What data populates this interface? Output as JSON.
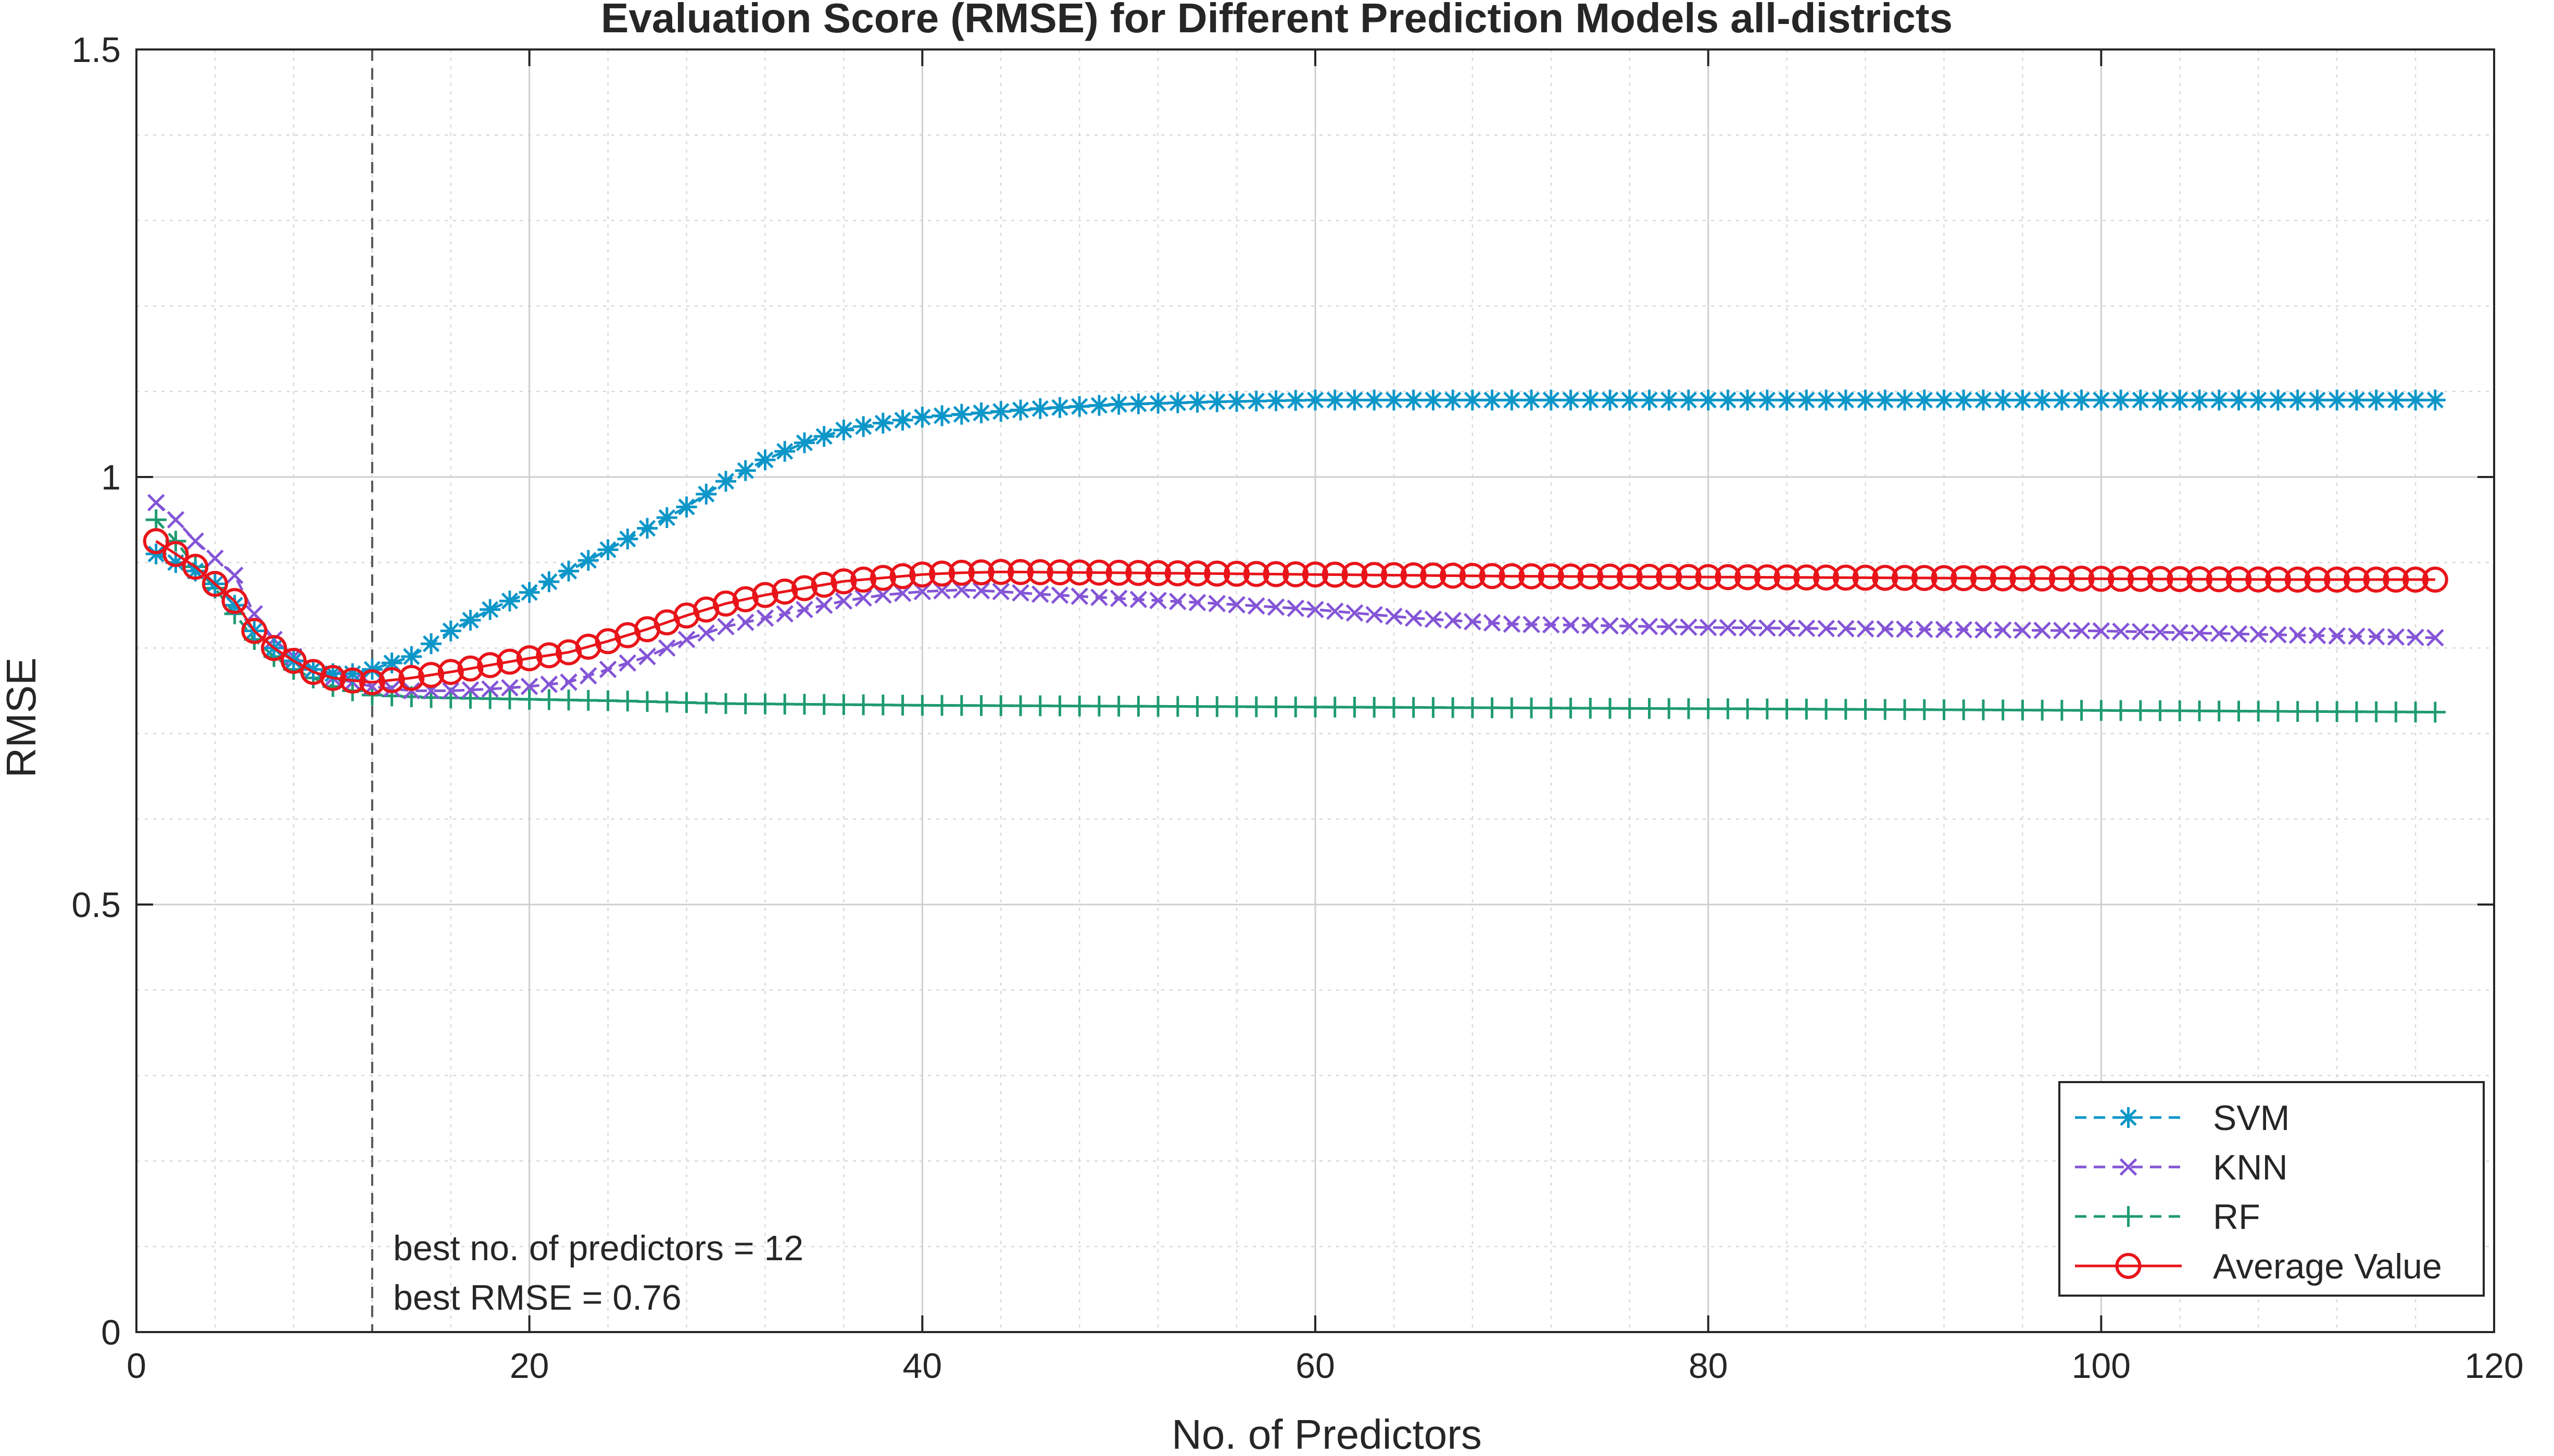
{
  "chart_data": {
    "type": "line",
    "title": "Evaluation Score (RMSE) for Different Prediction Models all-districts",
    "xlabel": "No. of Predictors",
    "ylabel": "RMSE",
    "xlim": [
      0,
      120
    ],
    "ylim": [
      0,
      1.5
    ],
    "xticks": [
      0,
      20,
      40,
      60,
      80,
      100,
      120
    ],
    "xtick_labels": [
      "0",
      "20",
      "40",
      "60",
      "80",
      "100",
      "120"
    ],
    "yticks": [
      0,
      0.5,
      1,
      1.5
    ],
    "ytick_labels": [
      "0",
      "0.5",
      "1",
      "1.5"
    ],
    "grid": true,
    "minor_grid": true,
    "legend_position": "bottom-right",
    "vline_x": 12,
    "annotations": [
      "best no. of predictors = 12",
      "best RMSE = 0.76"
    ],
    "series": [
      {
        "name": "SVM",
        "color": "#0d96c8",
        "marker": "asterisk",
        "linestyle": "dashed",
        "anchors": [
          [
            1,
            0.91
          ],
          [
            2,
            0.9
          ],
          [
            3,
            0.89
          ],
          [
            4,
            0.875
          ],
          [
            5,
            0.85
          ],
          [
            6,
            0.82
          ],
          [
            7,
            0.8
          ],
          [
            8,
            0.785
          ],
          [
            9,
            0.775
          ],
          [
            10,
            0.77
          ],
          [
            11,
            0.77
          ],
          [
            12,
            0.775
          ],
          [
            14,
            0.79
          ],
          [
            16,
            0.82
          ],
          [
            18,
            0.845
          ],
          [
            20,
            0.865
          ],
          [
            22,
            0.89
          ],
          [
            24,
            0.915
          ],
          [
            26,
            0.94
          ],
          [
            28,
            0.965
          ],
          [
            30,
            0.995
          ],
          [
            32,
            1.02
          ],
          [
            34,
            1.04
          ],
          [
            36,
            1.055
          ],
          [
            38,
            1.063
          ],
          [
            40,
            1.07
          ],
          [
            43,
            1.075
          ],
          [
            46,
            1.08
          ],
          [
            50,
            1.085
          ],
          [
            55,
            1.088
          ],
          [
            60,
            1.09
          ],
          [
            70,
            1.09
          ],
          [
            80,
            1.09
          ],
          [
            90,
            1.09
          ],
          [
            100,
            1.09
          ],
          [
            117,
            1.09
          ]
        ]
      },
      {
        "name": "KNN",
        "color": "#8455d6",
        "marker": "cross",
        "linestyle": "dashed",
        "anchors": [
          [
            1,
            0.97
          ],
          [
            2,
            0.95
          ],
          [
            3,
            0.925
          ],
          [
            4,
            0.905
          ],
          [
            5,
            0.885
          ],
          [
            6,
            0.84
          ],
          [
            7,
            0.81
          ],
          [
            8,
            0.79
          ],
          [
            9,
            0.775
          ],
          [
            10,
            0.765
          ],
          [
            11,
            0.76
          ],
          [
            12,
            0.755
          ],
          [
            14,
            0.75
          ],
          [
            16,
            0.75
          ],
          [
            18,
            0.752
          ],
          [
            20,
            0.755
          ],
          [
            22,
            0.76
          ],
          [
            24,
            0.775
          ],
          [
            26,
            0.79
          ],
          [
            28,
            0.81
          ],
          [
            30,
            0.825
          ],
          [
            32,
            0.835
          ],
          [
            34,
            0.845
          ],
          [
            36,
            0.855
          ],
          [
            38,
            0.862
          ],
          [
            40,
            0.866
          ],
          [
            42,
            0.868
          ],
          [
            44,
            0.866
          ],
          [
            46,
            0.863
          ],
          [
            50,
            0.858
          ],
          [
            55,
            0.852
          ],
          [
            60,
            0.845
          ],
          [
            65,
            0.835
          ],
          [
            70,
            0.828
          ],
          [
            80,
            0.824
          ],
          [
            90,
            0.822
          ],
          [
            100,
            0.82
          ],
          [
            110,
            0.815
          ],
          [
            117,
            0.812
          ]
        ]
      },
      {
        "name": "RF",
        "color": "#1f9a72",
        "marker": "plus",
        "linestyle": "dashed",
        "anchors": [
          [
            1,
            0.95
          ],
          [
            2,
            0.925
          ],
          [
            3,
            0.895
          ],
          [
            4,
            0.87
          ],
          [
            5,
            0.84
          ],
          [
            6,
            0.81
          ],
          [
            7,
            0.79
          ],
          [
            8,
            0.775
          ],
          [
            9,
            0.765
          ],
          [
            10,
            0.755
          ],
          [
            11,
            0.75
          ],
          [
            12,
            0.745
          ],
          [
            15,
            0.742
          ],
          [
            20,
            0.74
          ],
          [
            25,
            0.738
          ],
          [
            30,
            0.735
          ],
          [
            40,
            0.733
          ],
          [
            50,
            0.732
          ],
          [
            60,
            0.731
          ],
          [
            80,
            0.729
          ],
          [
            100,
            0.727
          ],
          [
            117,
            0.725
          ]
        ]
      },
      {
        "name": "Average Value",
        "color": "#e8141a",
        "marker": "circle",
        "linestyle": "solid",
        "anchors": [
          [
            1,
            0.925
          ],
          [
            2,
            0.91
          ],
          [
            3,
            0.895
          ],
          [
            4,
            0.875
          ],
          [
            5,
            0.855
          ],
          [
            6,
            0.82
          ],
          [
            7,
            0.8
          ],
          [
            8,
            0.785
          ],
          [
            9,
            0.772
          ],
          [
            10,
            0.765
          ],
          [
            11,
            0.762
          ],
          [
            12,
            0.76
          ],
          [
            14,
            0.765
          ],
          [
            16,
            0.772
          ],
          [
            18,
            0.78
          ],
          [
            20,
            0.788
          ],
          [
            22,
            0.795
          ],
          [
            24,
            0.808
          ],
          [
            26,
            0.822
          ],
          [
            28,
            0.838
          ],
          [
            30,
            0.852
          ],
          [
            32,
            0.862
          ],
          [
            34,
            0.87
          ],
          [
            36,
            0.878
          ],
          [
            38,
            0.882
          ],
          [
            40,
            0.886
          ],
          [
            42,
            0.888
          ],
          [
            44,
            0.889
          ],
          [
            50,
            0.888
          ],
          [
            60,
            0.886
          ],
          [
            70,
            0.884
          ],
          [
            80,
            0.883
          ],
          [
            90,
            0.882
          ],
          [
            100,
            0.881
          ],
          [
            110,
            0.88
          ],
          [
            117,
            0.88
          ]
        ]
      }
    ]
  }
}
